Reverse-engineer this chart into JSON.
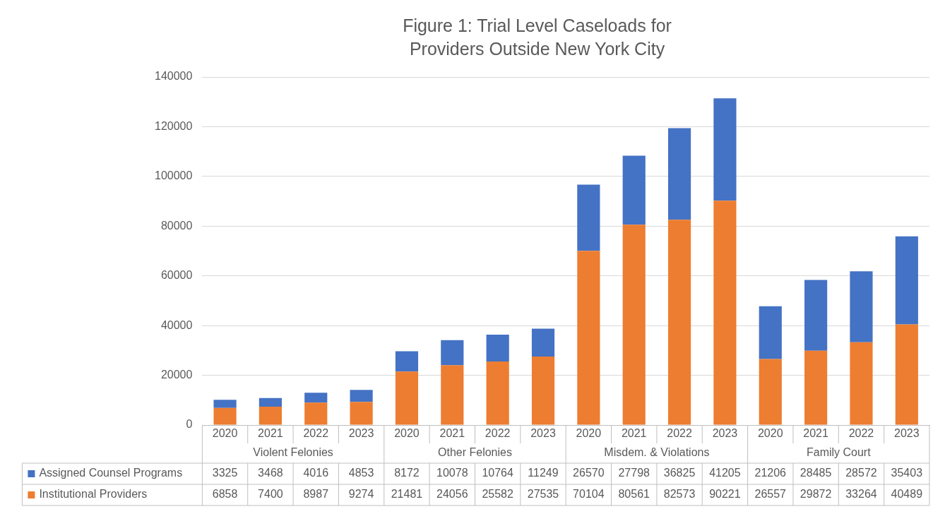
{
  "chart_data": {
    "type": "bar",
    "title": "Figure 1: Trial Level Caseloads for Providers Outside New York City",
    "categories": [
      "2020",
      "2021",
      "2022",
      "2023",
      "2020",
      "2021",
      "2022",
      "2023",
      "2020",
      "2021",
      "2022",
      "2023",
      "2020",
      "2021",
      "2022",
      "2023"
    ],
    "annotations": [
      "Violent Felonies",
      "Other Felonies",
      "Misdem. & Violations",
      "Family Court"
    ],
    "series": [
      {
        "name": "Institutional Providers",
        "color": "#ed7d31",
        "values": [
          6858,
          7400,
          8987,
          9274,
          21481,
          24056,
          25582,
          27535,
          70104,
          80561,
          82573,
          90221,
          26557,
          29872,
          33264,
          40489
        ]
      },
      {
        "name": "Assigned Counsel Programs",
        "color": "#4472c4",
        "values": [
          3325,
          3468,
          4016,
          4853,
          8172,
          10078,
          10764,
          11249,
          26570,
          27798,
          36825,
          41205,
          21206,
          28485,
          28572,
          35403
        ]
      }
    ],
    "stacked": true,
    "ylim": [
      0,
      140000
    ],
    "yticks": [
      0,
      20000,
      40000,
      60000,
      80000,
      100000,
      120000,
      140000
    ],
    "grid": "y",
    "legend": "bottom",
    "data_labels": true
  }
}
